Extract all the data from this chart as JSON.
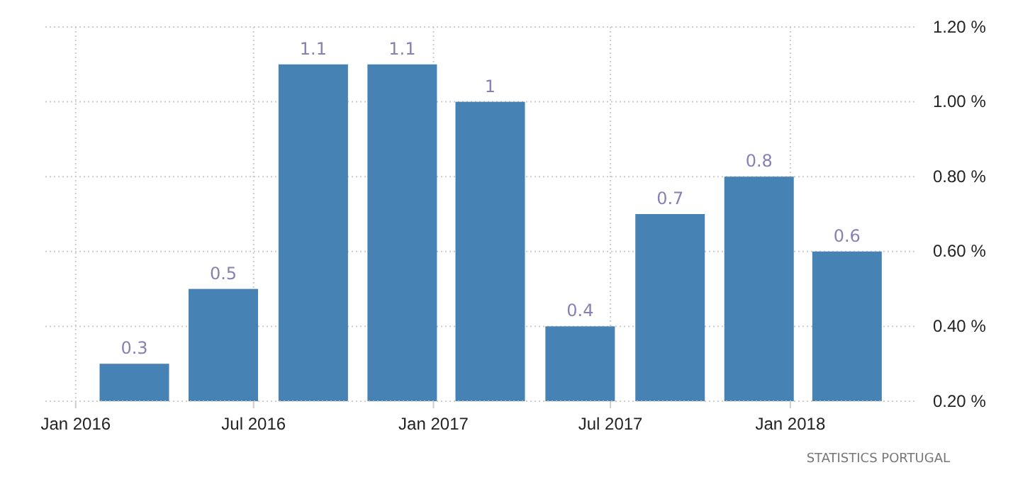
{
  "chart_data": {
    "type": "bar",
    "x": [
      "2016-03-01",
      "2016-05-31",
      "2016-08-31",
      "2016-11-30",
      "2017-02-28",
      "2017-05-31",
      "2017-08-31",
      "2017-11-30",
      "2018-02-28"
    ],
    "values": [
      0.3,
      0.5,
      1.1,
      1.1,
      1,
      0.4,
      0.7,
      0.8,
      0.6
    ],
    "color": "#4682b4",
    "data_labels": true,
    "xlim": [
      "2015-12-01",
      "2018-05-08"
    ],
    "xticks": [
      {
        "value": "2016-01-01",
        "label": "Jan 2016"
      },
      {
        "value": "2016-07-01",
        "label": "Jul 2016"
      },
      {
        "value": "2017-01-01",
        "label": "Jan 2017"
      },
      {
        "value": "2017-07-01",
        "label": "Jul 2017"
      },
      {
        "value": "2018-01-01",
        "label": "Jan 2018"
      }
    ],
    "ylim": [
      0.2,
      1.2
    ],
    "yticks": [
      {
        "value": 0.2,
        "label": "0.20 %"
      },
      {
        "value": 0.4,
        "label": "0.40 %"
      },
      {
        "value": 0.6,
        "label": "0.60 %"
      },
      {
        "value": 0.8,
        "label": "0.80 %"
      },
      {
        "value": 1.0,
        "label": "1.00 %"
      },
      {
        "value": 1.2,
        "label": "1.20 %"
      }
    ],
    "grid": true,
    "annotations": [
      "STATISTICS PORTUGAL"
    ]
  }
}
